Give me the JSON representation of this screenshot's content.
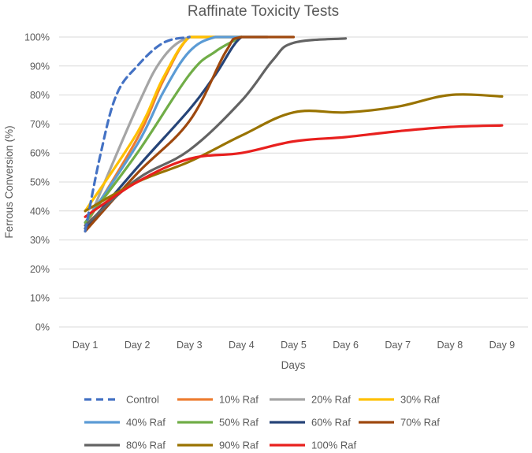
{
  "chart_data": {
    "type": "line",
    "title": "Raffinate Toxicity Tests",
    "xlabel": "Days",
    "ylabel": "Ferrous Conversion (%)",
    "categories": [
      "Day 1",
      "Day 2",
      "Day 3",
      "Day 4",
      "Day 5",
      "Day 6",
      "Day 7",
      "Day 8",
      "Day 9"
    ],
    "y_ticks": [
      "0%",
      "10%",
      "20%",
      "30%",
      "40%",
      "50%",
      "60%",
      "70%",
      "80%",
      "90%",
      "100%"
    ],
    "ylim": [
      0,
      100
    ],
    "grid": true,
    "legend_position": "bottom",
    "series": [
      {
        "name": "Control",
        "color": "#4472c4",
        "dashed": true,
        "points": [
          [
            1,
            33
          ],
          [
            1.3,
            60
          ],
          [
            1.6,
            80
          ],
          [
            2,
            90
          ],
          [
            2.5,
            98
          ],
          [
            3,
            100
          ]
        ]
      },
      {
        "name": "10% Raf",
        "color": "#ed7d31",
        "dashed": false,
        "points": [
          [
            1,
            35
          ],
          [
            2,
            65
          ],
          [
            2.5,
            85
          ],
          [
            3,
            100
          ],
          [
            3.5,
            100
          ],
          [
            4,
            100
          ]
        ]
      },
      {
        "name": "20% Raf",
        "color": "#a5a5a5",
        "dashed": false,
        "points": [
          [
            1,
            34
          ],
          [
            2,
            76
          ],
          [
            2.5,
            93
          ],
          [
            3,
            100
          ],
          [
            3.5,
            100
          ],
          [
            4,
            100
          ]
        ]
      },
      {
        "name": "30% Raf",
        "color": "#ffc000",
        "dashed": false,
        "points": [
          [
            1,
            40
          ],
          [
            2,
            67
          ],
          [
            2.5,
            86
          ],
          [
            3,
            100
          ],
          [
            3.5,
            100
          ],
          [
            4,
            100
          ]
        ]
      },
      {
        "name": "40% Raf",
        "color": "#5b9bd5",
        "dashed": false,
        "points": [
          [
            1,
            36
          ],
          [
            2,
            63
          ],
          [
            2.5,
            81
          ],
          [
            3,
            95
          ],
          [
            3.5,
            100
          ],
          [
            4,
            100
          ]
        ]
      },
      {
        "name": "50% Raf",
        "color": "#70ad47",
        "dashed": false,
        "points": [
          [
            1,
            36
          ],
          [
            2,
            60
          ],
          [
            3,
            87
          ],
          [
            3.5,
            95
          ],
          [
            4,
            100
          ]
        ]
      },
      {
        "name": "60% Raf",
        "color": "#264478",
        "dashed": false,
        "points": [
          [
            1,
            34
          ],
          [
            2,
            55
          ],
          [
            3,
            75
          ],
          [
            3.5,
            87
          ],
          [
            4,
            100
          ],
          [
            4.5,
            100
          ]
        ]
      },
      {
        "name": "70% Raf",
        "color": "#9e480e",
        "dashed": false,
        "points": [
          [
            1,
            33
          ],
          [
            2,
            53
          ],
          [
            3,
            71
          ],
          [
            3.7,
            95
          ],
          [
            4,
            100
          ],
          [
            5,
            100
          ]
        ]
      },
      {
        "name": "80% Raf",
        "color": "#636363",
        "dashed": false,
        "points": [
          [
            1,
            35
          ],
          [
            2,
            51
          ],
          [
            3,
            61
          ],
          [
            4,
            78
          ],
          [
            4.6,
            92
          ],
          [
            5,
            98
          ],
          [
            6,
            99.5
          ]
        ]
      },
      {
        "name": "90% Raf",
        "color": "#997300",
        "dashed": false,
        "points": [
          [
            1,
            40
          ],
          [
            2,
            50
          ],
          [
            3,
            57
          ],
          [
            4,
            66
          ],
          [
            5,
            74
          ],
          [
            6,
            74
          ],
          [
            7,
            76
          ],
          [
            8,
            80
          ],
          [
            9,
            79.5
          ]
        ]
      },
      {
        "name": "100% Raf",
        "color": "#e8201e",
        "dashed": false,
        "points": [
          [
            1,
            38
          ],
          [
            2,
            50
          ],
          [
            3,
            58
          ],
          [
            4,
            60
          ],
          [
            5,
            64
          ],
          [
            6,
            65.5
          ],
          [
            7,
            67.5
          ],
          [
            8,
            69
          ],
          [
            9,
            69.5
          ]
        ]
      }
    ]
  }
}
